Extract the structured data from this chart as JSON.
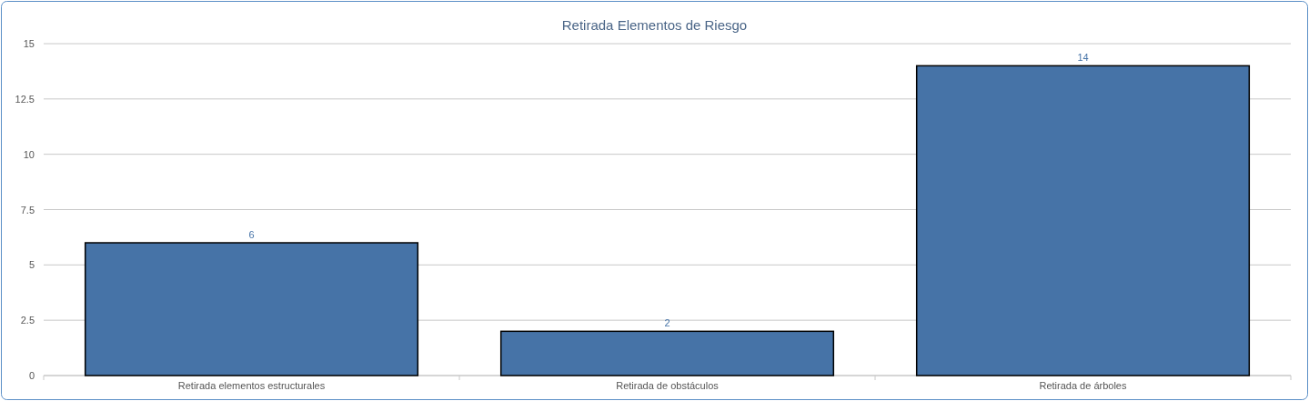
{
  "chart_data": {
    "type": "bar",
    "title": "Retirada Elementos de Riesgo",
    "categories": [
      "Retirada elementos estructurales",
      "Retirada de obstáculos",
      "Retirada de árboles"
    ],
    "values": [
      6,
      2,
      14
    ],
    "color": "#4673a7",
    "ylim": [
      0,
      15
    ],
    "yticks": [
      0,
      2.5,
      5,
      7.5,
      10,
      12.5,
      15
    ],
    "grid": "y",
    "data_labels": true
  }
}
